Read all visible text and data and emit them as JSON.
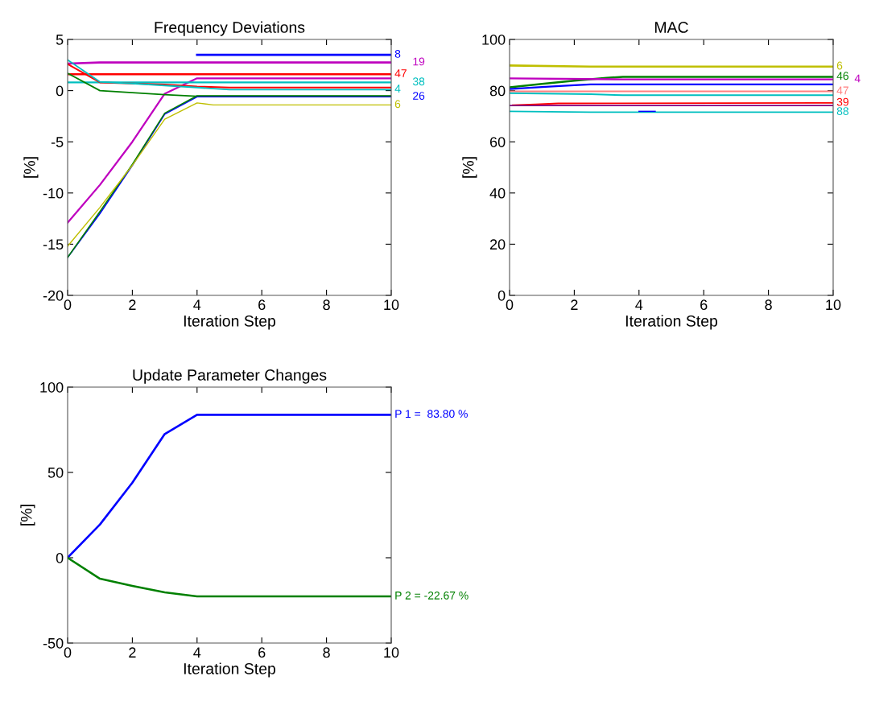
{
  "chart_data": [
    {
      "type": "line",
      "title": "Frequency Deviations",
      "xlabel": "Iteration Step",
      "ylabel": "[%]",
      "xlim": [
        0,
        10
      ],
      "xticks": [
        0,
        2,
        4,
        6,
        8,
        10
      ],
      "ylim": [
        -20,
        5
      ],
      "yticks": [
        -20,
        -15,
        -10,
        -5,
        0,
        5
      ],
      "grid": false,
      "legend": false,
      "series": [
        {
          "name": "8",
          "color": "#0000ff",
          "x": [
            4,
            10
          ],
          "values": [
            3.5,
            3.5
          ]
        },
        {
          "name": "19",
          "color": "#bf00bf",
          "x": [
            0,
            1,
            10
          ],
          "values": [
            2.65,
            2.75,
            2.75
          ]
        },
        {
          "name": "47",
          "color": "#ff0000",
          "x": [
            0,
            10
          ],
          "values": [
            1.6,
            1.6
          ]
        },
        {
          "color": "#bf00bf",
          "x": [
            0,
            1,
            2,
            3,
            4,
            10
          ],
          "values": [
            -12.9,
            -9.2,
            -5,
            -0.3,
            1.2,
            1.2
          ]
        },
        {
          "name": "38",
          "color": "#00bfbf",
          "x": [
            0,
            10
          ],
          "values": [
            0.8,
            0.8
          ]
        },
        {
          "color": "#ff0000",
          "x": [
            0,
            1,
            2,
            3,
            4,
            5,
            10
          ],
          "values": [
            2.6,
            0.8,
            0.7,
            0.6,
            0.4,
            0.3,
            0.3
          ]
        },
        {
          "name": "4",
          "color": "#00bfbf",
          "x": [
            0,
            1,
            2,
            3,
            4,
            5,
            10
          ],
          "values": [
            3.0,
            0.85,
            0.7,
            0.5,
            0.3,
            0.1,
            0.1
          ]
        },
        {
          "color": "#008000",
          "x": [
            0,
            1,
            2,
            3,
            4,
            10
          ],
          "values": [
            1.7,
            0,
            -0.2,
            -0.4,
            -0.55,
            -0.55
          ]
        },
        {
          "name": "26",
          "color": "#0000ff",
          "x": [
            0,
            1,
            2,
            3,
            4,
            10
          ],
          "values": [
            -16.3,
            -12,
            -7.3,
            -2.3,
            -0.6,
            -0.6
          ]
        },
        {
          "color": "#008000",
          "x": [
            0,
            1,
            2,
            3,
            4,
            10
          ],
          "values": [
            -16.3,
            -11.8,
            -7.2,
            -2.2,
            -0.5,
            -0.5
          ]
        },
        {
          "name": "6",
          "color": "#bfbf00",
          "x": [
            0,
            1,
            2,
            3,
            4,
            4.5,
            10
          ],
          "values": [
            -15.2,
            -11.4,
            -7.3,
            -2.8,
            -1.2,
            -1.4,
            -1.4
          ]
        }
      ]
    },
    {
      "type": "line",
      "title": "MAC",
      "xlabel": "Iteration Step",
      "ylabel": "[%]",
      "xlim": [
        0,
        10
      ],
      "xticks": [
        0,
        2,
        4,
        6,
        8,
        10
      ],
      "ylim": [
        0,
        100
      ],
      "yticks": [
        0,
        20,
        40,
        60,
        80,
        100
      ],
      "grid": false,
      "legend": false,
      "series": [
        {
          "name": "6",
          "color": "#bfbf00",
          "x": [
            0,
            2.5,
            10
          ],
          "values": [
            89.8,
            89.4,
            89.4
          ]
        },
        {
          "name": "46",
          "color": "#008000",
          "x": [
            0,
            1,
            2,
            3,
            3.5,
            10
          ],
          "values": [
            81.3,
            82.6,
            83.9,
            85,
            85.4,
            85.4
          ]
        },
        {
          "name": "4",
          "color": "#bf00bf",
          "x": [
            0,
            3.5,
            10
          ],
          "values": [
            84.8,
            84.4,
            84.4
          ]
        },
        {
          "color": "#0000ff",
          "x": [
            0,
            1,
            2,
            2.5,
            10
          ],
          "values": [
            80.6,
            81.4,
            82.1,
            82.4,
            82.4
          ]
        },
        {
          "name": "47",
          "color": "#ff8080",
          "x": [
            0,
            10
          ],
          "values": [
            79.7,
            79.7
          ]
        },
        {
          "color": "#00bfbf",
          "x": [
            0,
            2.5,
            3.5,
            10
          ],
          "values": [
            79,
            78.6,
            78.2,
            78.2
          ]
        },
        {
          "name": "39",
          "color": "#ff0000",
          "x": [
            0.1,
            0.8,
            1.5,
            10
          ],
          "values": [
            74.3,
            74.6,
            75,
            75.2
          ]
        },
        {
          "color": "#800080",
          "x": [
            0,
            10
          ],
          "values": [
            74.2,
            74.2
          ]
        },
        {
          "name": "88",
          "color": "#00bfbf",
          "x": [
            0,
            2.5,
            10
          ],
          "values": [
            71.9,
            71.6,
            71.6
          ]
        },
        {
          "color": "#0000ff",
          "x": [
            4,
            4.5
          ],
          "values": [
            71.9,
            71.9
          ]
        }
      ]
    },
    {
      "type": "line",
      "title": "Update Parameter Changes",
      "xlabel": "Iteration Step",
      "ylabel": "[%]",
      "xlim": [
        0,
        10
      ],
      "xticks": [
        0,
        2,
        4,
        6,
        8,
        10
      ],
      "ylim": [
        -50,
        100
      ],
      "yticks": [
        -50,
        0,
        50,
        100
      ],
      "grid": false,
      "legend": false,
      "series": [
        {
          "name": "P 1 =  83.80 %",
          "color": "#0000ff",
          "x": [
            0,
            1,
            2,
            3,
            4,
            10
          ],
          "values": [
            0,
            19.5,
            44,
            72.5,
            83.8,
            83.8
          ]
        },
        {
          "name": "P 2 = -22.67 %",
          "color": "#008000",
          "x": [
            0,
            1,
            2,
            3,
            4,
            4.5,
            10
          ],
          "values": [
            0,
            -12.3,
            -16.5,
            -20.3,
            -22.6,
            -22.67,
            -22.67
          ]
        }
      ]
    }
  ]
}
